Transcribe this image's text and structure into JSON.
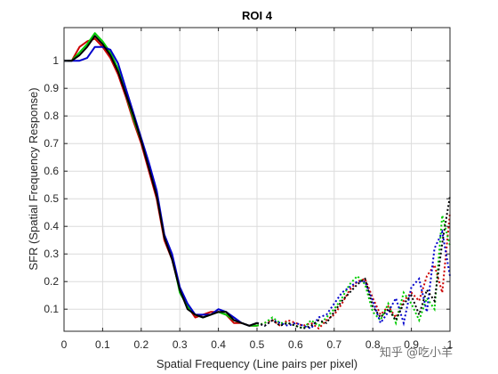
{
  "chart_data": {
    "type": "line",
    "title": "ROI 4",
    "xlabel": "Spatial Frequency (Line pairs per pixel)",
    "ylabel": "SFR (Spatial Frequency Response)",
    "xlim": [
      0,
      1
    ],
    "ylim": [
      0.02,
      1.12
    ],
    "xticks": [
      "0",
      "0.1",
      "0.2",
      "0.3",
      "0.4",
      "0.5",
      "0.6",
      "0.7",
      "0.8",
      "0.9",
      "1"
    ],
    "yticks": [
      "0.1",
      "0.2",
      "0.3",
      "0.4",
      "0.5",
      "0.6",
      "0.7",
      "0.8",
      "0.9",
      "1"
    ],
    "grid": true,
    "solid_until_x": 0.5,
    "series": [
      {
        "color": "#cc0000",
        "x": [
          0,
          0.02,
          0.04,
          0.06,
          0.08,
          0.1,
          0.12,
          0.14,
          0.16,
          0.18,
          0.2,
          0.22,
          0.24,
          0.26,
          0.28,
          0.3,
          0.32,
          0.34,
          0.36,
          0.38,
          0.4,
          0.42,
          0.44,
          0.46,
          0.48,
          0.5,
          0.52,
          0.54,
          0.56,
          0.58,
          0.6,
          0.62,
          0.64,
          0.66,
          0.68,
          0.7,
          0.72,
          0.74,
          0.76,
          0.78,
          0.8,
          0.82,
          0.84,
          0.86,
          0.88,
          0.9,
          0.92,
          0.94,
          0.96,
          0.98,
          1.0
        ],
        "y": [
          1.0,
          1.0,
          1.05,
          1.07,
          1.08,
          1.05,
          1.01,
          0.95,
          0.87,
          0.78,
          0.7,
          0.6,
          0.5,
          0.35,
          0.28,
          0.17,
          0.11,
          0.07,
          0.08,
          0.09,
          0.09,
          0.08,
          0.05,
          0.05,
          0.04,
          0.04,
          0.05,
          0.06,
          0.04,
          0.06,
          0.05,
          0.04,
          0.05,
          0.03,
          0.06,
          0.08,
          0.12,
          0.17,
          0.2,
          0.21,
          0.14,
          0.08,
          0.11,
          0.07,
          0.13,
          0.16,
          0.13,
          0.22,
          0.26,
          0.16,
          0.45
        ]
      },
      {
        "color": "#00cc00",
        "x": [
          0,
          0.02,
          0.04,
          0.06,
          0.08,
          0.1,
          0.12,
          0.14,
          0.16,
          0.18,
          0.2,
          0.22,
          0.24,
          0.26,
          0.28,
          0.3,
          0.32,
          0.34,
          0.36,
          0.38,
          0.4,
          0.42,
          0.44,
          0.46,
          0.48,
          0.5,
          0.52,
          0.54,
          0.56,
          0.58,
          0.6,
          0.62,
          0.64,
          0.66,
          0.68,
          0.7,
          0.72,
          0.74,
          0.76,
          0.78,
          0.8,
          0.82,
          0.84,
          0.86,
          0.88,
          0.9,
          0.92,
          0.94,
          0.96,
          0.98,
          1.0
        ],
        "y": [
          1.0,
          1.0,
          1.03,
          1.06,
          1.1,
          1.07,
          1.03,
          0.97,
          0.88,
          0.79,
          0.71,
          0.62,
          0.52,
          0.36,
          0.29,
          0.16,
          0.11,
          0.08,
          0.07,
          0.08,
          0.09,
          0.08,
          0.06,
          0.05,
          0.04,
          0.04,
          0.05,
          0.07,
          0.05,
          0.05,
          0.04,
          0.03,
          0.06,
          0.04,
          0.07,
          0.1,
          0.14,
          0.19,
          0.22,
          0.19,
          0.09,
          0.06,
          0.12,
          0.05,
          0.16,
          0.12,
          0.06,
          0.14,
          0.1,
          0.44,
          0.33
        ]
      },
      {
        "color": "#0000cc",
        "x": [
          0,
          0.02,
          0.04,
          0.06,
          0.08,
          0.1,
          0.12,
          0.14,
          0.16,
          0.18,
          0.2,
          0.22,
          0.24,
          0.26,
          0.28,
          0.3,
          0.32,
          0.34,
          0.36,
          0.38,
          0.4,
          0.42,
          0.44,
          0.46,
          0.48,
          0.5,
          0.52,
          0.54,
          0.56,
          0.58,
          0.6,
          0.62,
          0.64,
          0.66,
          0.68,
          0.7,
          0.72,
          0.74,
          0.76,
          0.78,
          0.8,
          0.82,
          0.84,
          0.86,
          0.88,
          0.9,
          0.92,
          0.94,
          0.96,
          0.98,
          1.0
        ],
        "y": [
          1.0,
          1.0,
          1.0,
          1.01,
          1.05,
          1.05,
          1.04,
          0.99,
          0.9,
          0.81,
          0.72,
          0.63,
          0.53,
          0.37,
          0.3,
          0.18,
          0.12,
          0.08,
          0.08,
          0.08,
          0.1,
          0.09,
          0.07,
          0.05,
          0.04,
          0.05,
          0.04,
          0.06,
          0.05,
          0.04,
          0.05,
          0.04,
          0.03,
          0.07,
          0.08,
          0.12,
          0.16,
          0.18,
          0.2,
          0.2,
          0.13,
          0.05,
          0.09,
          0.14,
          0.05,
          0.18,
          0.21,
          0.09,
          0.32,
          0.38,
          0.22
        ]
      },
      {
        "color": "#000000",
        "x": [
          0,
          0.02,
          0.04,
          0.06,
          0.08,
          0.1,
          0.12,
          0.14,
          0.16,
          0.18,
          0.2,
          0.22,
          0.24,
          0.26,
          0.28,
          0.3,
          0.32,
          0.34,
          0.36,
          0.38,
          0.4,
          0.42,
          0.44,
          0.46,
          0.48,
          0.5,
          0.52,
          0.54,
          0.56,
          0.58,
          0.6,
          0.62,
          0.64,
          0.66,
          0.68,
          0.7,
          0.72,
          0.74,
          0.76,
          0.78,
          0.8,
          0.82,
          0.84,
          0.86,
          0.88,
          0.9,
          0.92,
          0.94,
          0.96,
          0.98,
          1.0
        ],
        "y": [
          1.0,
          1.0,
          1.02,
          1.05,
          1.09,
          1.06,
          1.02,
          0.96,
          0.88,
          0.8,
          0.71,
          0.61,
          0.51,
          0.36,
          0.28,
          0.17,
          0.1,
          0.08,
          0.07,
          0.08,
          0.09,
          0.09,
          0.06,
          0.05,
          0.04,
          0.05,
          0.04,
          0.06,
          0.04,
          0.05,
          0.04,
          0.03,
          0.04,
          0.06,
          0.05,
          0.09,
          0.13,
          0.16,
          0.19,
          0.21,
          0.11,
          0.07,
          0.1,
          0.06,
          0.12,
          0.15,
          0.08,
          0.17,
          0.13,
          0.34,
          0.51
        ]
      }
    ]
  },
  "watermark": "知乎 @吃小羊"
}
